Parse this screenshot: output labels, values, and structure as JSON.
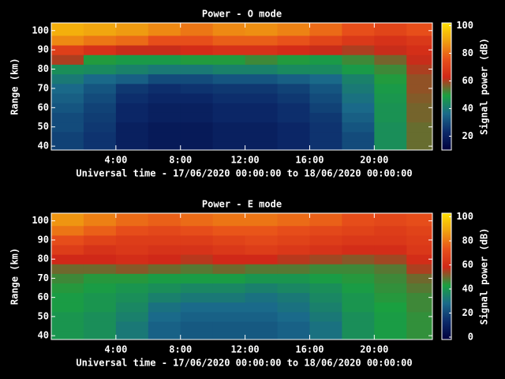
{
  "chart_data": [
    {
      "type": "heatmap",
      "title": "Power - O mode",
      "x_label": "Universal time - 17/06/2020 00:00:00 to 18/06/2020 00:00:00",
      "y_label": "Range (km)",
      "colorbar_label": "Signal power (dB)",
      "x": [
        0,
        2,
        4,
        6,
        8,
        10,
        12,
        14,
        16,
        18,
        20,
        22
      ],
      "y": [
        40,
        45,
        50,
        55,
        60,
        65,
        70,
        75,
        80,
        85,
        90,
        95,
        100
      ],
      "z": [
        [
          28,
          25,
          20,
          18,
          18,
          20,
          20,
          22,
          25,
          30,
          45,
          55
        ],
        [
          28,
          25,
          20,
          18,
          18,
          20,
          20,
          22,
          25,
          30,
          45,
          55
        ],
        [
          30,
          26,
          20,
          18,
          18,
          20,
          20,
          22,
          25,
          32,
          45,
          55
        ],
        [
          30,
          27,
          22,
          20,
          20,
          22,
          22,
          24,
          26,
          34,
          46,
          56
        ],
        [
          32,
          28,
          22,
          20,
          20,
          22,
          22,
          24,
          28,
          36,
          46,
          56
        ],
        [
          34,
          30,
          24,
          22,
          22,
          24,
          24,
          26,
          30,
          38,
          47,
          57
        ],
        [
          36,
          32,
          26,
          24,
          25,
          26,
          26,
          28,
          32,
          40,
          48,
          58
        ],
        [
          40,
          36,
          34,
          30,
          30,
          32,
          32,
          34,
          36,
          42,
          50,
          58
        ],
        [
          45,
          44,
          42,
          40,
          40,
          42,
          42,
          44,
          44,
          48,
          52,
          60
        ],
        [
          60,
          50,
          48,
          48,
          50,
          50,
          52,
          50,
          48,
          52,
          56,
          62
        ],
        [
          70,
          66,
          62,
          62,
          64,
          66,
          66,
          64,
          62,
          60,
          62,
          65
        ],
        [
          85,
          82,
          80,
          75,
          75,
          78,
          78,
          76,
          72,
          68,
          66,
          68
        ],
        [
          92,
          90,
          88,
          85,
          82,
          85,
          86,
          84,
          80,
          75,
          72,
          75
        ]
      ],
      "xlim": [
        0,
        23.6
      ],
      "ylim": [
        38,
        104
      ],
      "xticks": [
        {
          "value": 4,
          "label": "4:00"
        },
        {
          "value": 8,
          "label": "8:00"
        },
        {
          "value": 12,
          "label": "12:00"
        },
        {
          "value": 16,
          "label": "16:00"
        },
        {
          "value": 20,
          "label": "20:00"
        }
      ],
      "yticks": [
        40,
        50,
        60,
        70,
        80,
        90,
        100
      ],
      "clim": [
        10,
        102
      ],
      "cticks": [
        20,
        40,
        60,
        80,
        100
      ],
      "colorscale": [
        "#00003c",
        "#0c2a6a",
        "#1a6a8a",
        "#1aa040",
        "#d02818",
        "#e8501a",
        "#f0a010",
        "#ffe000"
      ]
    },
    {
      "type": "heatmap",
      "title": "Power - E mode",
      "x_label": "Universal time - 17/06/2020 00:00:00 to 18/06/2020 00:00:00",
      "y_label": "Range (km)",
      "colorbar_label": "Signal power (dB)",
      "x": [
        0,
        2,
        4,
        6,
        8,
        10,
        12,
        14,
        16,
        18,
        20,
        22
      ],
      "y": [
        40,
        45,
        50,
        55,
        60,
        65,
        70,
        75,
        80,
        85,
        90,
        95,
        100
      ],
      "z": [
        [
          40,
          38,
          32,
          26,
          24,
          24,
          24,
          26,
          30,
          38,
          42,
          45
        ],
        [
          40,
          38,
          32,
          26,
          24,
          24,
          24,
          26,
          30,
          38,
          42,
          45
        ],
        [
          40,
          38,
          34,
          28,
          26,
          26,
          26,
          28,
          32,
          38,
          42,
          45
        ],
        [
          42,
          40,
          36,
          30,
          28,
          28,
          28,
          30,
          34,
          40,
          43,
          46
        ],
        [
          42,
          40,
          38,
          34,
          32,
          32,
          30,
          32,
          36,
          40,
          44,
          46
        ],
        [
          44,
          42,
          40,
          38,
          36,
          36,
          34,
          36,
          38,
          42,
          45,
          48
        ],
        [
          46,
          44,
          44,
          42,
          42,
          42,
          40,
          40,
          42,
          44,
          46,
          50
        ],
        [
          50,
          50,
          52,
          50,
          48,
          50,
          48,
          48,
          46,
          46,
          48,
          55
        ],
        [
          58,
          58,
          60,
          58,
          56,
          58,
          58,
          56,
          54,
          52,
          54,
          60
        ],
        [
          66,
          62,
          64,
          62,
          62,
          64,
          66,
          64,
          62,
          60,
          60,
          64
        ],
        [
          72,
          68,
          66,
          66,
          66,
          68,
          70,
          68,
          66,
          64,
          64,
          66
        ],
        [
          80,
          76,
          72,
          70,
          72,
          74,
          74,
          72,
          70,
          68,
          66,
          68
        ],
        [
          86,
          82,
          78,
          76,
          78,
          80,
          80,
          78,
          76,
          72,
          70,
          72
        ]
      ],
      "xlim": [
        0,
        23.6
      ],
      "ylim": [
        38,
        104
      ],
      "xticks": [
        {
          "value": 4,
          "label": "4:00"
        },
        {
          "value": 8,
          "label": "8:00"
        },
        {
          "value": 12,
          "label": "12:00"
        },
        {
          "value": 16,
          "label": "16:00"
        },
        {
          "value": 20,
          "label": "20:00"
        }
      ],
      "yticks": [
        40,
        50,
        60,
        70,
        80,
        90,
        100
      ],
      "clim": [
        -2,
        103
      ],
      "cticks": [
        0,
        20,
        40,
        60,
        80,
        100
      ],
      "colorscale": [
        "#00003c",
        "#0c2a6a",
        "#1a6a8a",
        "#1aa040",
        "#d02818",
        "#e8501a",
        "#f0a010",
        "#ffe000"
      ]
    }
  ]
}
